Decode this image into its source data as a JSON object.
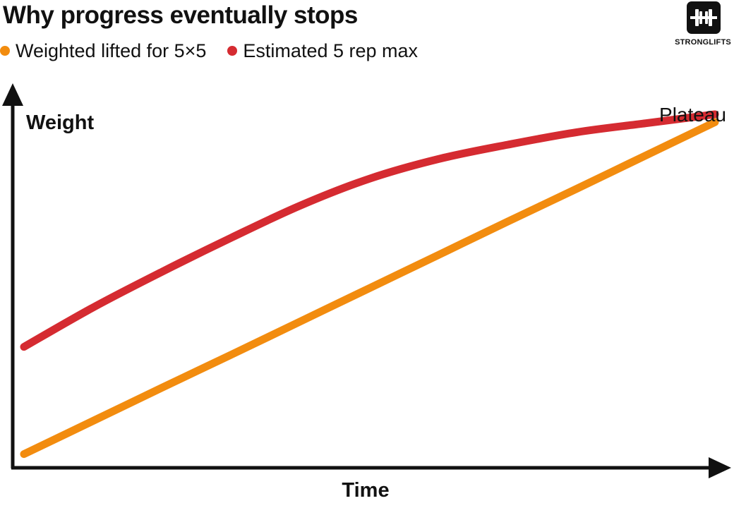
{
  "chart_data": {
    "type": "line",
    "title": "Why progress eventually stops",
    "xlabel": "Time",
    "ylabel": "Weight",
    "xlim": [
      0,
      100
    ],
    "ylim": [
      0,
      100
    ],
    "grid": false,
    "legend_placement": "top-left",
    "x": [
      0,
      10,
      20,
      30,
      40,
      50,
      60,
      70,
      80,
      90,
      100
    ],
    "series": [
      {
        "name": "Weighted lifted for 5×5",
        "color": "#f28c0f",
        "values": [
          5,
          14.3,
          23.6,
          32.8,
          42.1,
          51.4,
          60.7,
          70,
          79.2,
          88.5,
          97.8
        ]
      },
      {
        "name": "Estimated 5 rep max",
        "color": "#d52b31",
        "values": [
          35,
          46,
          56,
          65.5,
          74.5,
          82,
          87.5,
          91.5,
          95,
          97.5,
          100
        ]
      }
    ],
    "annotations": [
      {
        "text": "Plateau",
        "x": 100,
        "y": 100
      }
    ]
  },
  "brand": {
    "name": "STRONGLIFTS",
    "icon": "barbell-icon"
  },
  "colors": {
    "axis": "#111111",
    "background": "#ffffff"
  }
}
